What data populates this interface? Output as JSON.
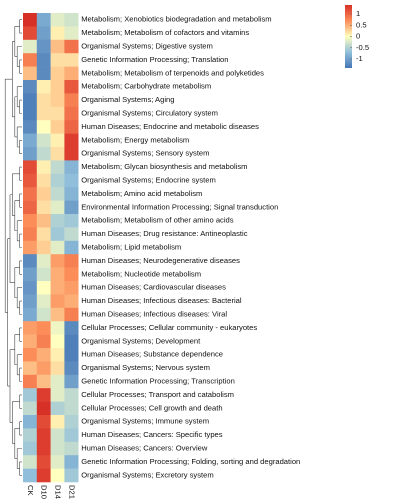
{
  "chart_data": {
    "type": "heatmap",
    "columns": [
      "CK",
      "D10",
      "D14",
      "D21"
    ],
    "rows": [
      "Metabolism; Xenobiotics biodegradation and metabolism",
      "Metabolism; Metabolism of cofactors and vitamins",
      "Organismal Systems; Digestive system",
      "Genetic Information Processing; Translation",
      "Metabolism; Metabolism of terpenoids and polyketides",
      "Metabolism; Carbohydrate metabolism",
      "Organismal Systems; Aging",
      "Organismal Systems; Circulatory system",
      "Human Diseases; Endocrine and metabolic diseases",
      "Metabolism; Energy metabolism",
      "Organismal Systems; Sensory system",
      "Metabolism; Glycan biosynthesis and metabolism",
      "Organismal Systems; Endocrine system",
      "Metabolism; Amino acid metabolism",
      "Environmental Information Processing; Signal transduction",
      "Metabolism; Metabolism of other amino acids",
      "Human Diseases; Drug resistance: Antineoplastic",
      "Metabolism; Lipid metabolism",
      "Human Diseases; Neurodegenerative diseases",
      "Metabolism; Nucleotide metabolism",
      "Human Diseases; Cardiovascular diseases",
      "Human Diseases; Infectious diseases: Bacterial",
      "Human Diseases; Infectious diseases: Viral",
      "Cellular Processes; Cellular community - eukaryotes",
      "Organismal Systems; Development",
      "Human Diseases; Substance dependence",
      "Organismal Systems; Nervous system",
      "Genetic Information Processing; Transcription",
      "Cellular Processes; Transport and catabolism",
      "Cellular Processes; Cell growth and death",
      "Organismal Systems; Immune system",
      "Human Diseases; Cancers: Specific types",
      "Human Diseases; Cancers: Overview",
      "Genetic Information Processing; Folding, sorting and degradation",
      "Organismal Systems; Excretory system"
    ],
    "values": [
      [
        1.4,
        -0.9,
        -0.2,
        -0.3
      ],
      [
        1.2,
        -1.0,
        0.1,
        -0.2
      ],
      [
        -0.2,
        -1.1,
        0.4,
        0.9
      ],
      [
        0.8,
        -1.2,
        0.2,
        0.2
      ],
      [
        0.4,
        -1.2,
        0.3,
        0.5
      ],
      [
        -1.2,
        0.1,
        0.3,
        1.1
      ],
      [
        -1.3,
        0.2,
        0.3,
        0.8
      ],
      [
        -1.3,
        0.2,
        0.2,
        0.9
      ],
      [
        -1.2,
        0.0,
        0.3,
        1.0
      ],
      [
        -0.9,
        -0.3,
        0.1,
        1.3
      ],
      [
        -1.0,
        -0.4,
        0.2,
        1.3
      ],
      [
        1.2,
        0.1,
        -0.4,
        -0.8
      ],
      [
        1.1,
        0.2,
        -0.5,
        -0.7
      ],
      [
        0.9,
        0.3,
        -0.4,
        -0.8
      ],
      [
        1.0,
        0.2,
        -0.2,
        -1.0
      ],
      [
        0.7,
        0.4,
        -0.5,
        -0.6
      ],
      [
        0.8,
        0.2,
        -0.6,
        -0.4
      ],
      [
        0.6,
        0.3,
        -0.2,
        -0.8
      ],
      [
        -1.2,
        -0.2,
        0.6,
        0.8
      ],
      [
        -1.0,
        -0.3,
        0.5,
        0.7
      ],
      [
        -1.1,
        0.0,
        0.5,
        0.6
      ],
      [
        -1.0,
        -0.2,
        0.6,
        0.5
      ],
      [
        -0.9,
        -0.3,
        0.4,
        0.8
      ],
      [
        0.6,
        0.7,
        -0.1,
        -1.2
      ],
      [
        0.5,
        0.8,
        0.0,
        -1.3
      ],
      [
        0.7,
        0.5,
        0.1,
        -1.3
      ],
      [
        0.4,
        0.6,
        0.2,
        -1.2
      ],
      [
        0.8,
        0.4,
        -0.2,
        -1.0
      ],
      [
        -0.6,
        1.3,
        -0.2,
        -0.4
      ],
      [
        -0.4,
        1.4,
        -0.5,
        -0.4
      ],
      [
        -0.8,
        1.2,
        0.1,
        -0.5
      ],
      [
        -0.5,
        1.3,
        -0.3,
        -0.6
      ],
      [
        -0.6,
        1.3,
        -0.3,
        -0.4
      ],
      [
        -0.3,
        1.2,
        -0.2,
        -0.8
      ],
      [
        -0.7,
        1.3,
        0.0,
        -0.6
      ]
    ],
    "colorlim": [
      -1.4,
      1.4
    ],
    "colors": [
      "#4575b4",
      "#91bfdb",
      "#ffffbf",
      "#fc8d59",
      "#d73027"
    ],
    "colorticks": [
      1,
      0.5,
      0,
      -0.5,
      -1
    ]
  }
}
